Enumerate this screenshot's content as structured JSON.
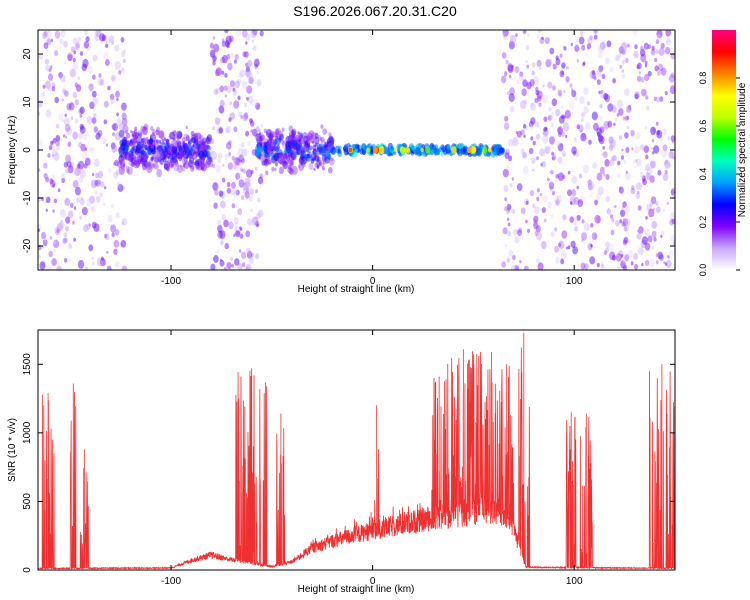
{
  "title": "S196.2026.067.20.31.C20",
  "chart_data": [
    {
      "type": "heatmap",
      "xlabel": "Height of straight line (km)",
      "ylabel": "Frequency (Hz)",
      "xlim": [
        -166,
        150
      ],
      "ylim": [
        -25,
        25
      ],
      "xticks": [
        -100,
        0,
        100
      ],
      "yticks": [
        -20,
        -10,
        0,
        10,
        20
      ],
      "colorbar": {
        "label": "Normalized spectral amplitude",
        "range": [
          0,
          1
        ],
        "ticks": [
          "0.0",
          "0.2",
          "0.4",
          "0.6",
          "0.8"
        ],
        "colormap": [
          "#ffffff",
          "#c8a8ff",
          "#7f00ff",
          "#0000ff",
          "#00a0ff",
          "#00ffc0",
          "#00ff00",
          "#c0ff00",
          "#ffff00",
          "#ff8000",
          "#ff0000",
          "#ff0080"
        ]
      },
      "features": [
        {
          "kind": "noise",
          "x_range": [
            -166,
            -123
          ],
          "freq_range": [
            -25,
            25
          ]
        },
        {
          "kind": "blob",
          "x_range": [
            -125,
            -80
          ],
          "freq_range": [
            -6,
            6
          ],
          "peak_amplitude": 0.35
        },
        {
          "kind": "noise_band",
          "x_range": [
            -80,
            -55
          ],
          "freq_range": [
            -25,
            25
          ]
        },
        {
          "kind": "blob",
          "x_range": [
            -57,
            -20
          ],
          "freq_range": [
            -6,
            6
          ],
          "peak_amplitude": 0.4
        },
        {
          "kind": "line",
          "x_range": [
            -20,
            65
          ],
          "frequency": 0,
          "peak_amplitude": 0.9
        },
        {
          "kind": "noise",
          "x_range": [
            65,
            150
          ],
          "freq_range": [
            -25,
            25
          ]
        }
      ]
    },
    {
      "type": "line",
      "xlabel": "Height of straight line (km)",
      "ylabel": "SNR (10 * v/v)",
      "xlim": [
        -166,
        150
      ],
      "ylim": [
        0,
        1750
      ],
      "xticks": [
        -100,
        0,
        100
      ],
      "yticks": [
        0,
        500,
        1000,
        1500
      ],
      "series_color": "#f03030",
      "baseline": [
        [
          -166,
          12
        ],
        [
          -100,
          15
        ],
        [
          -90,
          70
        ],
        [
          -80,
          110
        ],
        [
          -72,
          80
        ],
        [
          -50,
          25
        ],
        [
          -40,
          60
        ],
        [
          -30,
          160
        ],
        [
          -20,
          210
        ],
        [
          -10,
          250
        ],
        [
          0,
          290
        ],
        [
          10,
          320
        ],
        [
          20,
          350
        ],
        [
          30,
          380
        ],
        [
          40,
          400
        ],
        [
          50,
          430
        ],
        [
          60,
          430
        ],
        [
          68,
          380
        ],
        [
          72,
          200
        ],
        [
          76,
          20
        ],
        [
          150,
          12
        ]
      ],
      "spike_clusters": [
        {
          "x_range": [
            -164,
            -158
          ],
          "peak": 1290
        },
        {
          "x_range": [
            -150,
            -147
          ],
          "peak": 1360
        },
        {
          "x_range": [
            -145,
            -141
          ],
          "peak": 880
        },
        {
          "x_range": [
            -68,
            -52
          ],
          "peak": 1470
        },
        {
          "x_range": [
            -48,
            -43
          ],
          "peak": 1140
        },
        {
          "x_range": [
            1,
            3
          ],
          "peak": 1200
        },
        {
          "x_range": [
            29,
            37
          ],
          "peak": 1410
        },
        {
          "x_range": [
            35,
            55
          ],
          "peak": 1610
        },
        {
          "x_range": [
            55,
            63
          ],
          "peak": 1590
        },
        {
          "x_range": [
            63,
            70
          ],
          "peak": 1500
        },
        {
          "x_range": [
            72,
            78
          ],
          "peak": 1730
        },
        {
          "x_range": [
            96,
            101
          ],
          "peak": 1150
        },
        {
          "x_range": [
            103,
            109
          ],
          "peak": 1140
        },
        {
          "x_range": [
            137,
            150
          ],
          "peak": 1500
        }
      ]
    }
  ]
}
